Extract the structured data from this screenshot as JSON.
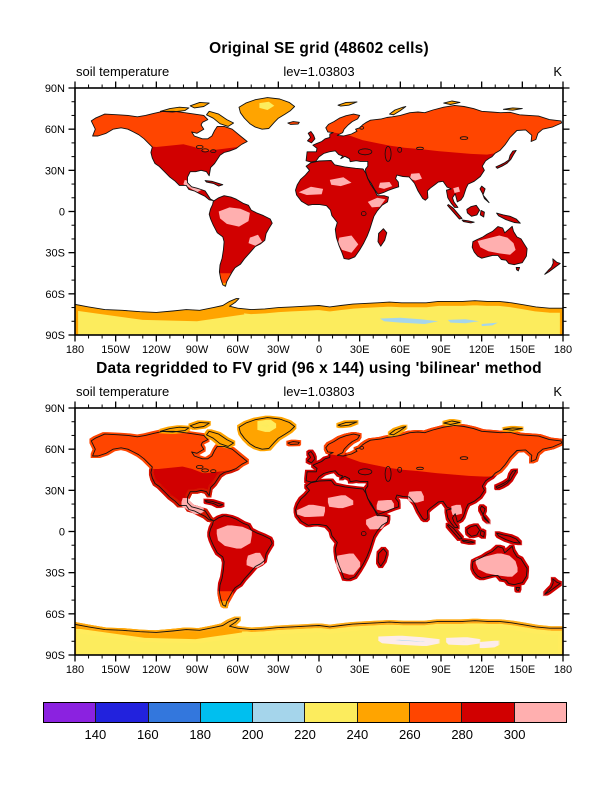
{
  "figure": {
    "background": "#FFFFFF",
    "panels": [
      {
        "title": "Original SE grid (48602 cells)",
        "left_string": "soil temperature",
        "center_string": "lev=1.03803",
        "right_string": "K"
      },
      {
        "title": "Data regridded to FV grid (96 x 144) using 'bilinear' method",
        "left_string": "soil temperature",
        "center_string": "lev=1.03803",
        "right_string": "K"
      }
    ]
  },
  "chart_data": {
    "type": "heatmap",
    "subtype": "filled-contour global maps, cylindrical equidistant (lat/lon) projection, two stacked panels sharing one color scale",
    "variable": "soil temperature",
    "units": "K",
    "level_label": "lev=1.03803",
    "panels": [
      {
        "title": "Original SE grid (48602 cells)",
        "grid": "spectral-element grid, 48602 cells"
      },
      {
        "title": "Data regridded to FV grid (96 x 144) using 'bilinear' method",
        "grid": "finite-volume grid 96 x 144, bilinear interpolation"
      }
    ],
    "x_axis": {
      "range_deg": [
        -180,
        180
      ],
      "major_tick_deg": 30,
      "minor_tick_deg": 10,
      "tick_labels": [
        "180",
        "150W",
        "120W",
        "90W",
        "60W",
        "30W",
        "0",
        "30E",
        "60E",
        "90E",
        "120E",
        "150E",
        "180"
      ]
    },
    "y_axis": {
      "range_deg": [
        -90,
        90
      ],
      "major_tick_deg": 30,
      "minor_tick_deg": 10,
      "tick_labels": [
        "90N",
        "60N",
        "30N",
        "0",
        "30S",
        "60S",
        "90S"
      ]
    },
    "colorbar": {
      "boundary_labels": [
        "140",
        "160",
        "180",
        "200",
        "220",
        "240",
        "260",
        "280",
        "300"
      ],
      "colors": [
        "#8B22E0",
        "#2222DD",
        "#3377DD",
        "#00BFEF",
        "#A5D5EB",
        "#FCEC5D",
        "#FFA400",
        "#FF4500",
        "#D10000",
        "#FFAFAF"
      ],
      "band_names": [
        "purple",
        "blue",
        "mediumblue",
        "cyan",
        "lightblue",
        "yellow",
        "orange",
        "orangered",
        "red",
        "pink"
      ],
      "band_ranges_K": [
        "<140",
        "140-160",
        "160-180",
        "180-200",
        "200-220",
        "220-240",
        "240-260",
        "260-280",
        "280-300",
        ">300"
      ]
    },
    "ocean_fill": "#FFFFFF",
    "regions_summary": [
      {
        "region": "Canada, Alaska, Siberia, Scandinavia, Patagonia",
        "color": "#FF4500",
        "temp_band": "260-280 K"
      },
      {
        "region": "USA, Mexico, Europe, Middle East, India, China, most of South America and Africa, Australia rim",
        "color": "#D10000",
        "temp_band": "280-300 K"
      },
      {
        "region": "Amazon basin, Sahel, Horn of Africa, southern Africa, central Australia",
        "color": "#FFAFAF",
        "temp_band": ">300 K"
      },
      {
        "region": "Greenland, Canadian Arctic islands, Antarctic coast",
        "color": "#FFA400",
        "temp_band": "240-260 K"
      },
      {
        "region": "Antarctic interior",
        "color": "#FCEC5D",
        "temp_band": "220-240 K"
      },
      {
        "region": "coldest East Antarctic plateau patches",
        "color": "#A5D5EB",
        "temp_band": "200-220 K"
      }
    ]
  }
}
